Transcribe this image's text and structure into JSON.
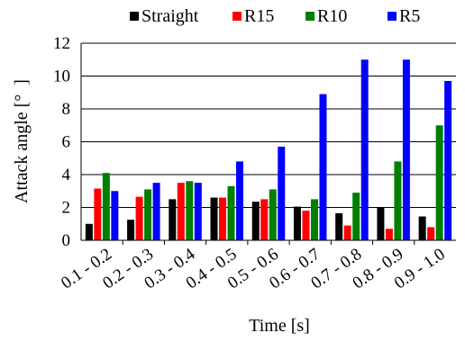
{
  "chart_data": {
    "type": "bar",
    "categories": [
      "0.1 - 0.2",
      "0.2 - 0.3",
      "0.3 - 0.4",
      "0.4 - 0.5",
      "0.5 - 0.6",
      "0.6 - 0.7",
      "0.7 - 0.8",
      "0.8 - 0.9",
      "0.9 - 1.0"
    ],
    "series": [
      {
        "name": "Straight",
        "color": "#000000",
        "values": [
          1.0,
          1.25,
          2.5,
          2.6,
          2.35,
          2.05,
          1.65,
          2.0,
          1.45
        ]
      },
      {
        "name": "R15",
        "color": "#ff0000",
        "values": [
          3.15,
          2.65,
          3.5,
          2.6,
          2.5,
          1.8,
          0.9,
          0.7,
          0.8
        ]
      },
      {
        "name": "R10",
        "color": "#008000",
        "values": [
          4.1,
          3.1,
          3.6,
          3.3,
          3.1,
          2.5,
          2.9,
          4.8,
          7.0
        ]
      },
      {
        "name": "R5",
        "color": "#0000ff",
        "values": [
          3.0,
          3.5,
          3.5,
          4.8,
          5.7,
          8.9,
          11.0,
          11.0,
          9.7
        ]
      }
    ],
    "xlabel": "Time [s]",
    "ylabel": "Attack angle [°  ]",
    "ylim": [
      0,
      12
    ],
    "yticks": [
      0,
      2,
      4,
      6,
      8,
      10,
      12
    ],
    "grid": "horizontal",
    "legend_position": "top"
  }
}
